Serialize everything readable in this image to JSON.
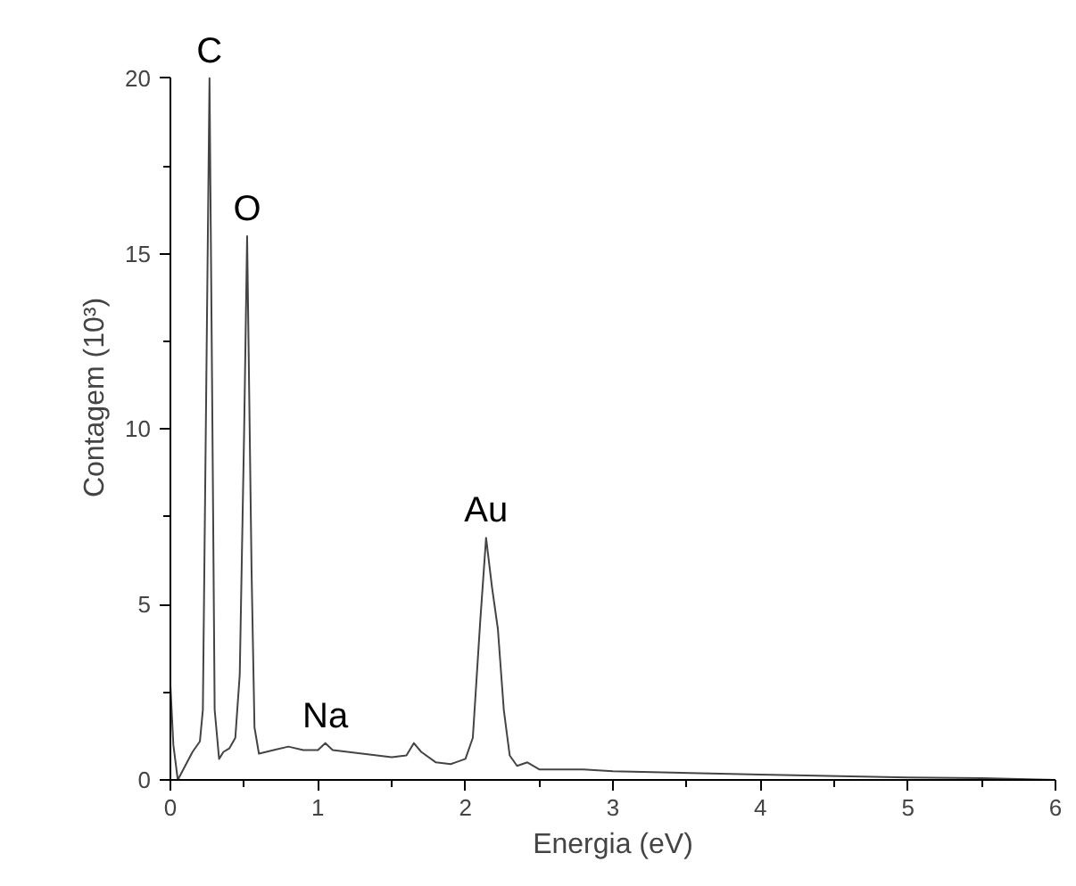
{
  "chart_data": {
    "type": "line",
    "xlabel": "Energia (eV)",
    "ylabel": "Contagem (10³)",
    "x": [
      0.0,
      0.02,
      0.05,
      0.1,
      0.15,
      0.2,
      0.22,
      0.245,
      0.265,
      0.285,
      0.3,
      0.33,
      0.36,
      0.4,
      0.44,
      0.47,
      0.5,
      0.52,
      0.55,
      0.57,
      0.6,
      0.7,
      0.8,
      0.9,
      1.0,
      1.05,
      1.1,
      1.3,
      1.5,
      1.6,
      1.65,
      1.7,
      1.8,
      1.9,
      2.0,
      2.05,
      2.1,
      2.14,
      2.18,
      2.22,
      2.26,
      2.3,
      2.35,
      2.42,
      2.5,
      2.8,
      3.0,
      4.0,
      5.0,
      5.5,
      6.0
    ],
    "series": [
      {
        "color": "#444444",
        "values": [
          2.7,
          1.0,
          0.0,
          0.4,
          0.8,
          1.1,
          2.0,
          12,
          20,
          10,
          2,
          0.6,
          0.8,
          0.9,
          1.2,
          3,
          10,
          15.5,
          6,
          1.5,
          0.75,
          0.85,
          0.95,
          0.85,
          0.85,
          1.05,
          0.85,
          0.75,
          0.65,
          0.7,
          1.05,
          0.8,
          0.5,
          0.45,
          0.6,
          1.2,
          4.5,
          6.9,
          5.5,
          4.3,
          2,
          0.7,
          0.4,
          0.5,
          0.3,
          0.3,
          0.25,
          0.15,
          0.07,
          0.05,
          0.0
        ]
      }
    ],
    "xlim": [
      0,
      6
    ],
    "xticks": [
      0,
      1,
      2,
      3,
      4,
      5,
      6
    ],
    "ylim": [
      0,
      20
    ],
    "yticks": [
      0,
      5,
      10,
      15,
      20
    ],
    "annotations": [
      {
        "text": "C",
        "x": 0.265,
        "y": 20
      },
      {
        "text": "O",
        "x": 0.52,
        "y": 15.5
      },
      {
        "text": "Na",
        "x": 1.05,
        "y": 1.05
      },
      {
        "text": "Au",
        "x": 2.14,
        "y": 6.9
      }
    ],
    "grid": false,
    "marker": "none",
    "line_style": "solid"
  }
}
